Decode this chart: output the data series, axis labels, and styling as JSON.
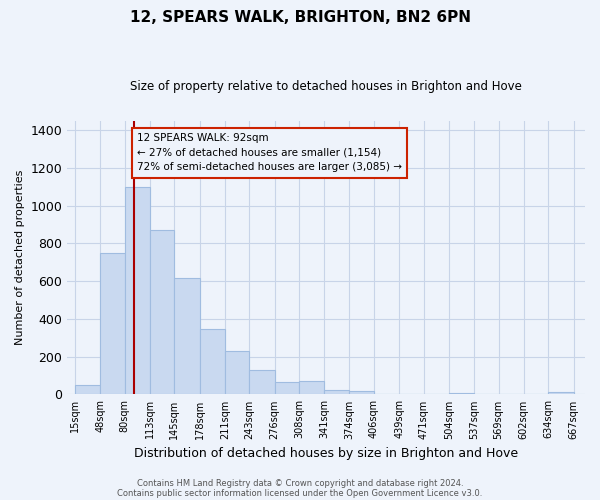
{
  "title": "12, SPEARS WALK, BRIGHTON, BN2 6PN",
  "subtitle": "Size of property relative to detached houses in Brighton and Hove",
  "xlabel": "Distribution of detached houses by size in Brighton and Hove",
  "ylabel": "Number of detached properties",
  "footer_line1": "Contains HM Land Registry data © Crown copyright and database right 2024.",
  "footer_line2": "Contains public sector information licensed under the Open Government Licence v3.0.",
  "bar_edges": [
    15,
    48,
    80,
    113,
    145,
    178,
    211,
    243,
    276,
    308,
    341,
    374,
    406,
    439,
    471,
    504,
    537,
    569,
    602,
    634,
    667
  ],
  "bar_heights": [
    50,
    750,
    1100,
    870,
    615,
    348,
    228,
    130,
    65,
    70,
    25,
    18,
    0,
    0,
    0,
    10,
    0,
    0,
    0,
    15
  ],
  "bar_fill_color": "#c9d9f0",
  "bar_edge_color": "#a0bce0",
  "vline_x": 92,
  "vline_color": "#aa0000",
  "ylim": [
    0,
    1450
  ],
  "yticks": [
    0,
    200,
    400,
    600,
    800,
    1000,
    1200,
    1400
  ],
  "annotation_title": "12 SPEARS WALK: 92sqm",
  "annotation_line1": "← 27% of detached houses are smaller (1,154)",
  "annotation_line2": "72% of semi-detached houses are larger (3,085) →",
  "tick_labels": [
    "15sqm",
    "48sqm",
    "80sqm",
    "113sqm",
    "145sqm",
    "178sqm",
    "211sqm",
    "243sqm",
    "276sqm",
    "308sqm",
    "341sqm",
    "374sqm",
    "406sqm",
    "439sqm",
    "471sqm",
    "504sqm",
    "537sqm",
    "569sqm",
    "602sqm",
    "634sqm",
    "667sqm"
  ],
  "background_color": "#eef3fb",
  "grid_color": "#c8d4e8",
  "ann_box_color": "#cc2200"
}
